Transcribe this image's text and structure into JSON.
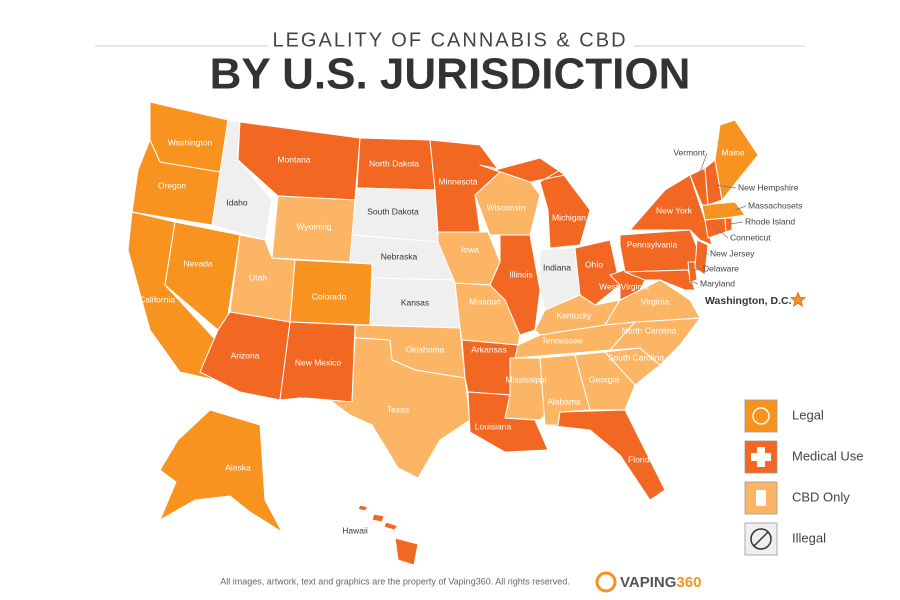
{
  "map": {
    "supertitle": "LEGALITY OF CANNABIS & CBD",
    "title": "BY U.S. JURISDICTION",
    "legend": [
      {
        "key": "legal",
        "label": "Legal",
        "color": "#f7931e"
      },
      {
        "key": "medical",
        "label": "Medical Use",
        "color": "#f26722"
      },
      {
        "key": "cbd",
        "label": "CBD Only",
        "color": "#fbb565"
      },
      {
        "key": "illegal",
        "label": "Illegal",
        "color": "#efefef"
      }
    ],
    "states": [
      {
        "name": "Washington",
        "status": "legal"
      },
      {
        "name": "Oregon",
        "status": "legal"
      },
      {
        "name": "California",
        "status": "legal"
      },
      {
        "name": "Nevada",
        "status": "legal"
      },
      {
        "name": "Idaho",
        "status": "illegal"
      },
      {
        "name": "Montana",
        "status": "medical"
      },
      {
        "name": "Wyoming",
        "status": "cbd"
      },
      {
        "name": "Utah",
        "status": "cbd"
      },
      {
        "name": "Colorado",
        "status": "legal"
      },
      {
        "name": "Arizona",
        "status": "medical"
      },
      {
        "name": "New Mexico",
        "status": "medical"
      },
      {
        "name": "North Dakota",
        "status": "medical"
      },
      {
        "name": "South Dakota",
        "status": "illegal"
      },
      {
        "name": "Nebraska",
        "status": "illegal"
      },
      {
        "name": "Kansas",
        "status": "illegal"
      },
      {
        "name": "Oklahoma",
        "status": "cbd"
      },
      {
        "name": "Texas",
        "status": "cbd"
      },
      {
        "name": "Minnesota",
        "status": "medical"
      },
      {
        "name": "Iowa",
        "status": "cbd"
      },
      {
        "name": "Missouri",
        "status": "cbd"
      },
      {
        "name": "Arkansas",
        "status": "medical"
      },
      {
        "name": "Louisiana",
        "status": "medical"
      },
      {
        "name": "Wisconsin",
        "status": "cbd"
      },
      {
        "name": "Illinois",
        "status": "medical"
      },
      {
        "name": "Michigan",
        "status": "medical"
      },
      {
        "name": "Indiana",
        "status": "illegal"
      },
      {
        "name": "Ohio",
        "status": "medical"
      },
      {
        "name": "Kentucky",
        "status": "cbd"
      },
      {
        "name": "Tennessee",
        "status": "cbd"
      },
      {
        "name": "Mississippi",
        "status": "cbd"
      },
      {
        "name": "Alabama",
        "status": "cbd"
      },
      {
        "name": "Georgia",
        "status": "cbd"
      },
      {
        "name": "Florida",
        "status": "medical"
      },
      {
        "name": "South Carolina",
        "status": "cbd"
      },
      {
        "name": "North Carolina",
        "status": "cbd"
      },
      {
        "name": "Virginia",
        "status": "cbd"
      },
      {
        "name": "West Virginia",
        "status": "medical"
      },
      {
        "name": "Pennsylvania",
        "status": "medical"
      },
      {
        "name": "New York",
        "status": "medical"
      },
      {
        "name": "Maryland",
        "status": "medical"
      },
      {
        "name": "Delaware",
        "status": "medical"
      },
      {
        "name": "New Jersey",
        "status": "medical"
      },
      {
        "name": "Conneticut",
        "status": "medical"
      },
      {
        "name": "Rhode Island",
        "status": "medical"
      },
      {
        "name": "Massachusets",
        "status": "legal"
      },
      {
        "name": "Vermont",
        "status": "medical"
      },
      {
        "name": "New Hempshire",
        "status": "medical"
      },
      {
        "name": "Maine",
        "status": "legal"
      },
      {
        "name": "Alaska",
        "status": "legal"
      },
      {
        "name": "Hawaii",
        "status": "medical"
      },
      {
        "name": "Washington, D.C.",
        "status": "legal"
      }
    ],
    "footer": "All images, artwork, text and graphics are the property of Vaping360. All rights reserved.",
    "logo": {
      "brand": "VAPING",
      "suffix": "360"
    }
  }
}
